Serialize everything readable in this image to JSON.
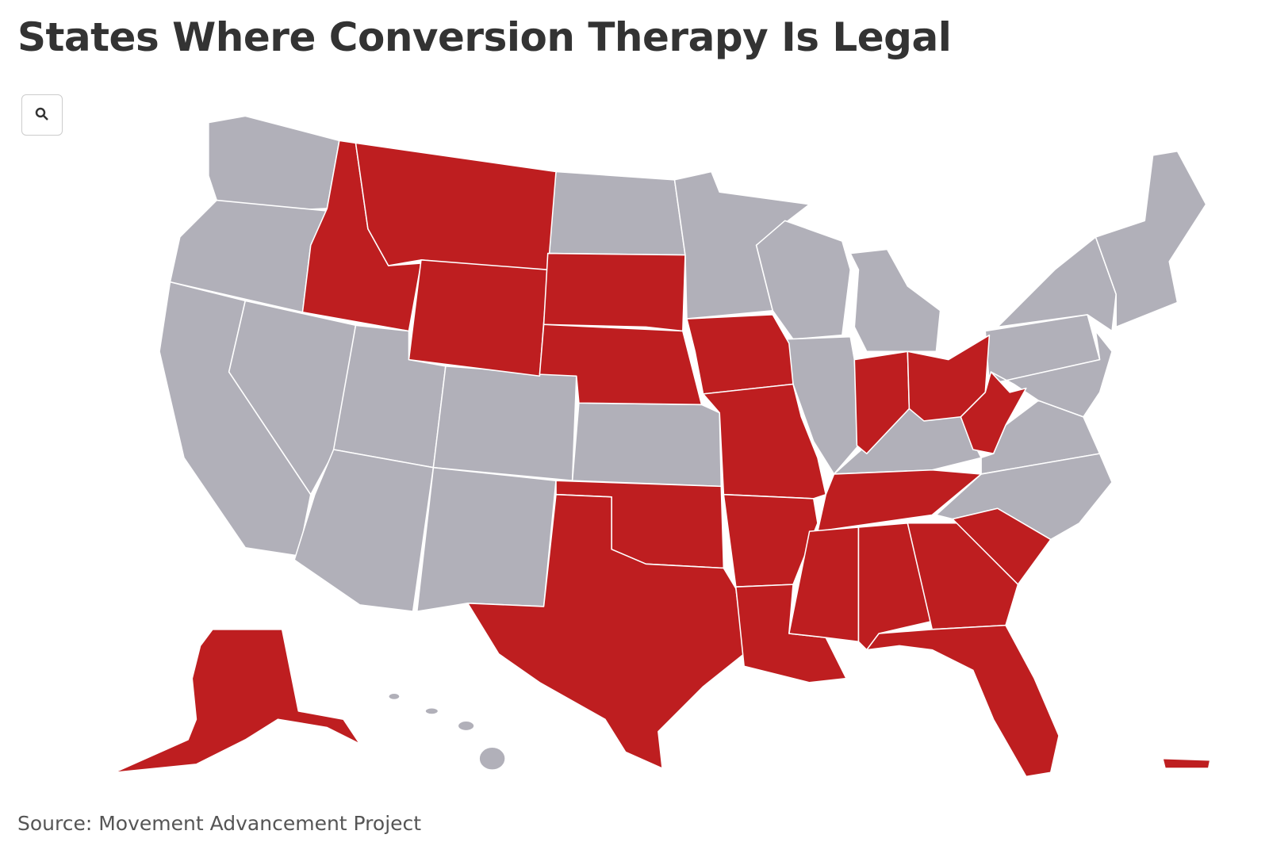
{
  "header": {
    "title": "States Where Conversion Therapy Is Legal"
  },
  "map": {
    "legal_color": "#be1e20",
    "other_color": "#b1b0b9"
  },
  "footer": {
    "source": "Source: Movement Advancement Project"
  }
}
